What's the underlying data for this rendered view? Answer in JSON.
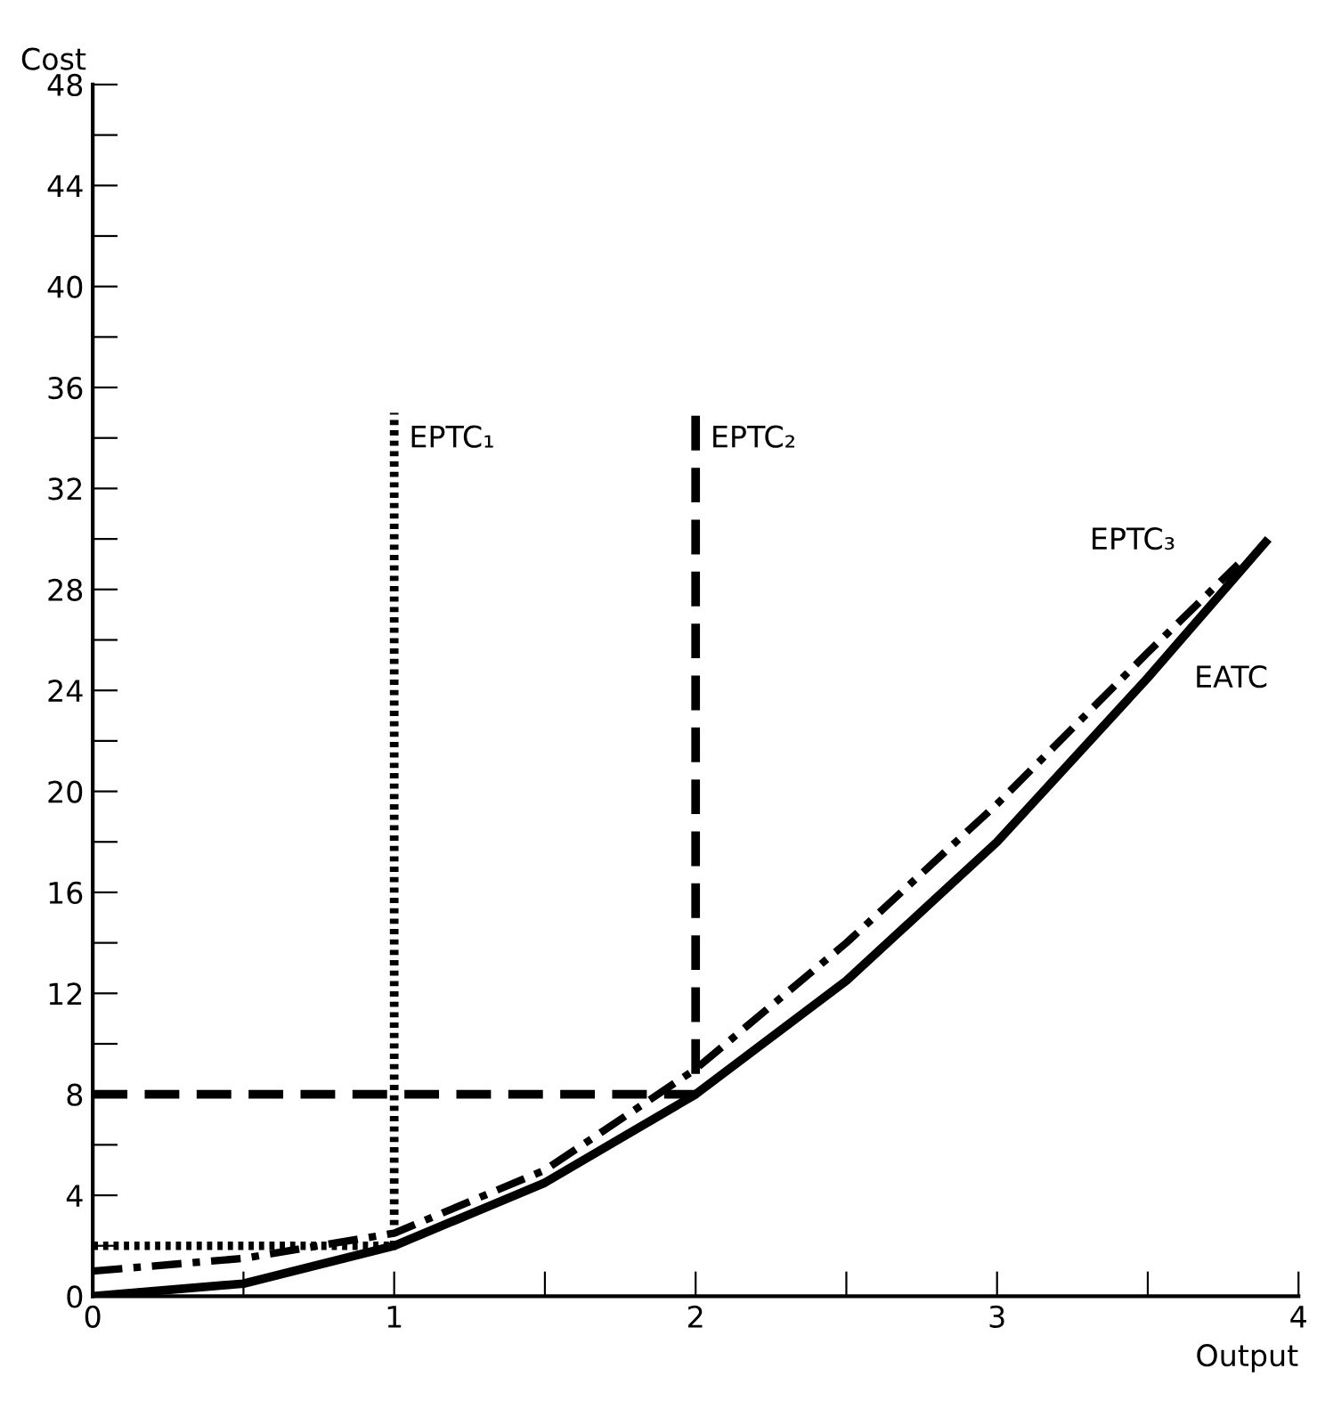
{
  "chart_data": {
    "type": "line",
    "xlabel": "Output",
    "ylabel": "Cost",
    "xlim": [
      0,
      4
    ],
    "ylim": [
      0,
      48
    ],
    "xticks": [
      0,
      {
        "value": 0.5,
        "label": null
      },
      1,
      {
        "value": 1.5,
        "label": null
      },
      2,
      {
        "value": 2.5,
        "label": null
      },
      3,
      {
        "value": 3.5,
        "label": null
      },
      4
    ],
    "yticks": [
      0,
      {
        "value": 2,
        "label": null
      },
      4,
      {
        "value": 6,
        "label": null
      },
      8,
      {
        "value": 10,
        "label": null
      },
      12,
      {
        "value": 14,
        "label": null
      },
      16,
      {
        "value": 18,
        "label": null
      },
      20,
      {
        "value": 22,
        "label": null
      },
      24,
      {
        "value": 26,
        "label": null
      },
      28,
      {
        "value": 30,
        "label": null
      },
      32,
      {
        "value": 34,
        "label": null
      },
      36,
      {
        "value": 38,
        "label": null
      },
      40,
      {
        "value": 42,
        "label": null
      },
      44,
      {
        "value": 46,
        "label": null
      },
      48
    ],
    "grid": false,
    "legend": false,
    "marker": "none",
    "series": [
      {
        "name": "EPTC₁",
        "color": "#000000",
        "line_style": "dotted",
        "x": [
          0,
          1,
          1
        ],
        "values": [
          2,
          2,
          35
        ]
      },
      {
        "name": "EPTC₂",
        "color": "#000000",
        "line_style": "dashed",
        "x": [
          0,
          1.9,
          2,
          2
        ],
        "values": [
          8,
          8,
          8,
          35
        ]
      },
      {
        "name": "EPTC₃",
        "color": "#000000",
        "line_style": "dashdot",
        "x": [
          0,
          0.5,
          1,
          1.5,
          2,
          2.5,
          3,
          3.5,
          3.8
        ],
        "values": [
          1,
          1.5,
          2.5,
          5,
          9,
          14,
          19.5,
          25.5,
          29
        ]
      },
      {
        "name": "EATC",
        "color": "#000000",
        "line_style": "solid",
        "x": [
          0,
          0.5,
          1,
          1.5,
          2,
          2.5,
          3,
          3.5,
          3.9
        ],
        "values": [
          0,
          0.5,
          2,
          4.5,
          8,
          12.5,
          18,
          24.5,
          30
        ]
      }
    ]
  }
}
